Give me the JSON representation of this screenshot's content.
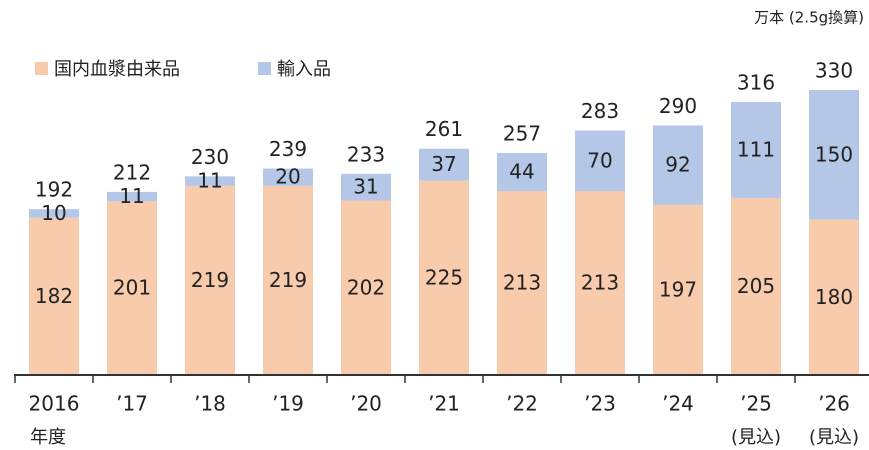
{
  "chart_data": {
    "type": "stacked_bar",
    "unit_label": "万本 (2.5g換算)",
    "categories": [
      "2016",
      "’17",
      "’18",
      "’19",
      "’20",
      "’21",
      "’22",
      "’23",
      "’24",
      "’25",
      "’26"
    ],
    "category_notes": [
      "年度",
      null,
      null,
      null,
      null,
      null,
      null,
      null,
      null,
      "(見込)",
      "(見込)"
    ],
    "series": [
      {
        "name": "国内血漿由来品",
        "color": "#f8cbad",
        "values": [
          182,
          201,
          219,
          219,
          202,
          225,
          213,
          213,
          197,
          205,
          180
        ]
      },
      {
        "name": "輸入品",
        "color": "#b4c7e7",
        "values": [
          10,
          11,
          11,
          20,
          31,
          37,
          44,
          70,
          92,
          111,
          150
        ]
      }
    ],
    "totals": [
      192,
      212,
      230,
      239,
      233,
      261,
      257,
      283,
      290,
      316,
      330
    ],
    "ylim": [
      0,
      330
    ]
  }
}
